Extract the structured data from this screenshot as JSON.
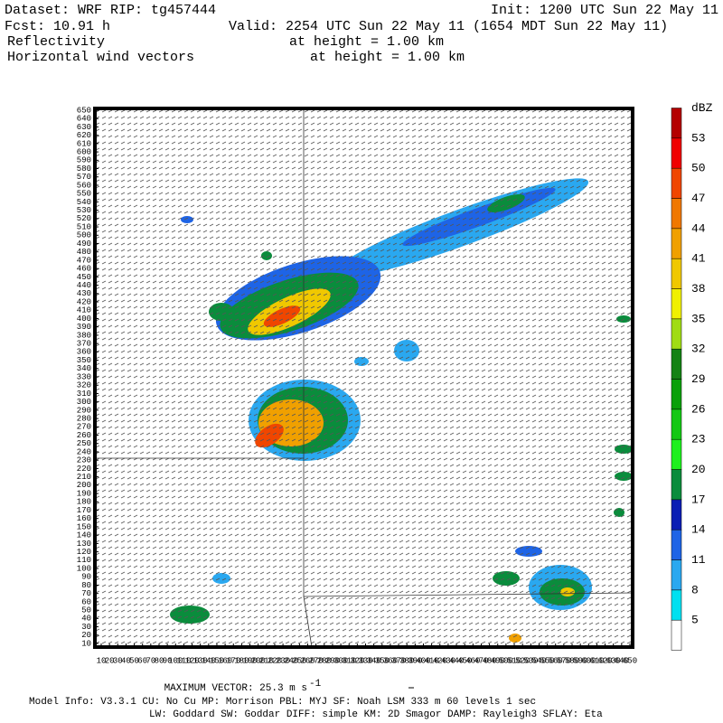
{
  "header": {
    "dataset": "Dataset: WRF  RIP: tg457444",
    "init": "Init: 1200 UTC Sun 22 May 11",
    "fcst": "Fcst:   10.91 h",
    "valid": "Valid: 2254 UTC Sun 22 May 11 (1654 MDT Sun 22 May 11)",
    "field1": "Reflectivity",
    "field1_level": "at height =  1.00 km",
    "field2": "Horizontal wind vectors",
    "field2_level": "at height =  1.00 km"
  },
  "plot": {
    "yticks": [
      10,
      20,
      30,
      40,
      50,
      60,
      70,
      80,
      90,
      100,
      110,
      120,
      130,
      140,
      150,
      160,
      170,
      180,
      190,
      200,
      210,
      220,
      230,
      240,
      250,
      260,
      270,
      280,
      290,
      300,
      310,
      320,
      330,
      340,
      350,
      360,
      370,
      380,
      390,
      400,
      410,
      420,
      430,
      440,
      450,
      460,
      470,
      480,
      490,
      500,
      510,
      520,
      530,
      540,
      550,
      560,
      570,
      580,
      590,
      600,
      610,
      620,
      630,
      640,
      650
    ],
    "xticks": [
      10,
      20,
      30,
      40,
      50,
      60,
      70,
      80,
      90,
      100,
      110,
      120,
      130,
      140,
      150,
      160,
      170,
      180,
      190,
      200,
      210,
      220,
      230,
      240,
      250,
      260,
      270,
      280,
      290,
      300,
      310,
      320,
      330,
      340,
      350,
      360,
      370,
      380,
      390,
      400,
      410,
      420,
      430,
      440,
      450,
      460,
      470,
      480,
      490,
      500,
      510,
      520,
      530,
      540,
      550,
      560,
      570,
      580,
      590,
      600,
      610,
      620,
      630,
      640,
      650
    ]
  },
  "colorbar": {
    "unit": "dBZ",
    "levels": [
      5,
      8,
      11,
      14,
      17,
      20,
      23,
      26,
      29,
      32,
      35,
      38,
      41,
      44,
      47,
      50,
      53
    ],
    "colors": [
      "#ffffff",
      "#00e0f0",
      "#2aa8f0",
      "#1e64e6",
      "#0a1eb4",
      "#0a8c3c",
      "#1ef01e",
      "#14c814",
      "#0aa00a",
      "#148214",
      "#a0dc14",
      "#f0f000",
      "#f0c800",
      "#f0a000",
      "#f07800",
      "#f04600",
      "#f00000",
      "#b40000"
    ]
  },
  "footer": {
    "max_vector": "MAXIMUM VECTOR:  25.3 m s",
    "max_vector_unit": "-1",
    "model_info": "Model Info: V3.3.1    CU: No Cu    MP: Morrison    PBL: MYJ    SF: Noah LSM    333 m    60 levels    1 sec",
    "physics": "LW: Goddard  SW: Goddar  DIFF: simple  KM: 2D Smagor  DAMP: Rayleigh3   SFLAY: Eta"
  }
}
